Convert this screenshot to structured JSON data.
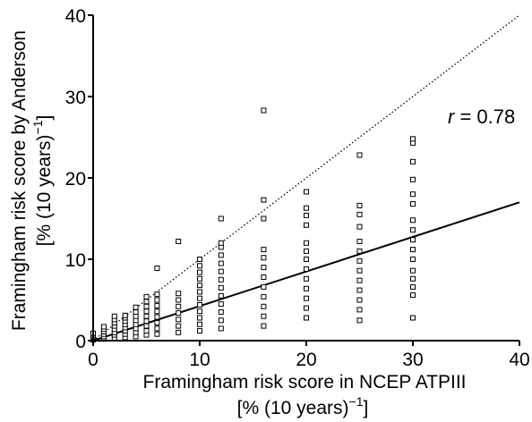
{
  "chart_data": {
    "type": "scatter",
    "title": "",
    "xlabel": "Framingham risk score in NCEP ATPIII",
    "xlabel_unit": "[% (10 years)",
    "ylabel": "Framingham risk score by Anderson",
    "ylabel_unit": "[% (10 years)",
    "unit_superscript": "−1",
    "unit_close": "]",
    "xlim": [
      0,
      40
    ],
    "ylim": [
      0,
      40
    ],
    "xticks": [
      0,
      10,
      20,
      30,
      40
    ],
    "yticks": [
      0,
      10,
      20,
      30,
      40
    ],
    "x_tick_labels": [
      "0",
      "10",
      "20",
      "30",
      "40"
    ],
    "y_tick_labels": [
      "0",
      "10",
      "20",
      "30",
      "40"
    ],
    "grid": false,
    "annotation": {
      "italic": "r",
      "text": " = 0.78"
    },
    "regression_line": {
      "style": "solid",
      "from": [
        0,
        0
      ],
      "to": [
        40,
        17
      ]
    },
    "identity_line": {
      "style": "dotted",
      "from": [
        0,
        0
      ],
      "to": [
        40,
        40
      ]
    },
    "points": [
      {
        "x": 0,
        "y": [
          0.1,
          0.2,
          0.3,
          0.4,
          0.5,
          0.7,
          0.9
        ]
      },
      {
        "x": 1,
        "y": [
          0.2,
          0.5,
          0.8,
          1.1,
          1.4,
          1.7
        ]
      },
      {
        "x": 2,
        "y": [
          0.3,
          0.7,
          1.0,
          1.4,
          1.8,
          2.2,
          2.6,
          3.0
        ]
      },
      {
        "x": 3,
        "y": [
          0.4,
          0.8,
          1.2,
          1.6,
          2.0,
          2.4,
          2.8,
          3.1
        ]
      },
      {
        "x": 4,
        "y": [
          0.5,
          1.0,
          1.5,
          2.0,
          2.5,
          3.0,
          3.5,
          4.1
        ]
      },
      {
        "x": 5,
        "y": [
          0.7,
          1.2,
          1.8,
          2.4,
          3.0,
          3.6,
          4.2,
          4.8,
          5.4
        ]
      },
      {
        "x": 6,
        "y": [
          0.8,
          1.5,
          2.2,
          2.9,
          3.6,
          4.3,
          5.0,
          5.7,
          8.9
        ]
      },
      {
        "x": 8,
        "y": [
          1.0,
          1.8,
          2.6,
          3.4,
          4.2,
          5.0,
          5.8,
          12.2
        ]
      },
      {
        "x": 10,
        "y": [
          1.2,
          2.0,
          2.8,
          3.6,
          4.4,
          5.2,
          6.0,
          6.8,
          7.6,
          8.4,
          9.2,
          10.0
        ]
      },
      {
        "x": 12,
        "y": [
          1.5,
          2.5,
          3.5,
          4.5,
          5.5,
          6.5,
          7.5,
          8.5,
          9.5,
          10.5,
          11.5,
          12.0,
          15.0
        ]
      },
      {
        "x": 16,
        "y": [
          1.8,
          3.0,
          4.2,
          5.4,
          6.6,
          7.8,
          9.0,
          10.2,
          11.2,
          15.0,
          17.3,
          28.3
        ]
      },
      {
        "x": 20,
        "y": [
          2.8,
          4.0,
          5.2,
          6.4,
          7.6,
          8.8,
          10.0,
          11.0,
          12.0,
          14.2,
          15.4,
          16.3,
          18.3
        ]
      },
      {
        "x": 25,
        "y": [
          2.5,
          3.8,
          5.0,
          6.2,
          7.4,
          8.6,
          9.8,
          11.0,
          12.2,
          14.0,
          15.5,
          16.6,
          22.8
        ]
      },
      {
        "x": 30,
        "y": [
          2.8,
          5.6,
          6.6,
          7.6,
          8.6,
          10.0,
          11.2,
          12.4,
          13.6,
          14.8,
          16.8,
          18.0,
          19.8,
          22.0,
          24.3,
          24.8
        ]
      }
    ]
  }
}
